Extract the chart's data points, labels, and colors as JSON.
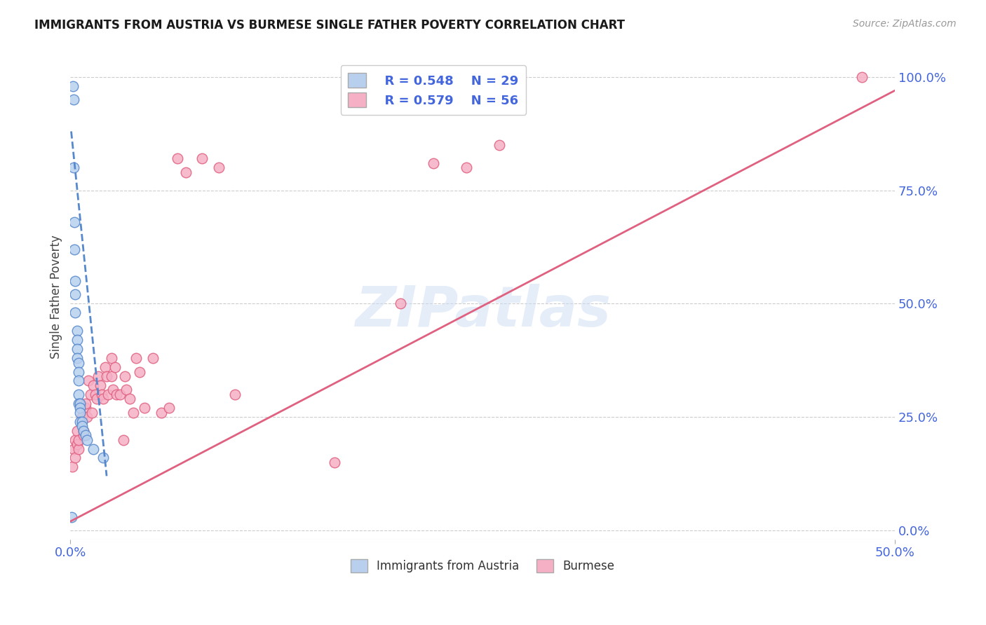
{
  "title": "IMMIGRANTS FROM AUSTRIA VS BURMESE SINGLE FATHER POVERTY CORRELATION CHART",
  "source": "Source: ZipAtlas.com",
  "ylabel": "Single Father Poverty",
  "xlim": [
    0.0,
    0.5
  ],
  "ylim": [
    -0.02,
    1.05
  ],
  "xtick_vals": [
    0.0,
    0.5
  ],
  "xtick_labels": [
    "0.0%",
    "50.0%"
  ],
  "ytick_vals_right": [
    0.0,
    0.25,
    0.5,
    0.75,
    1.0
  ],
  "ytick_labels_right": [
    "0.0%",
    "25.0%",
    "50.0%",
    "75.0%",
    "100.0%"
  ],
  "legend_r1": "R = 0.548",
  "legend_n1": "N = 29",
  "legend_r2": "R = 0.579",
  "legend_n2": "N = 56",
  "color_austria": "#b8d0ee",
  "color_burmese": "#f5b0c5",
  "color_trendline_austria": "#5588cc",
  "color_trendline_burmese": "#e06080",
  "color_text_blue": "#4466dd",
  "watermark": "ZIPatlas",
  "austria_x": [
    0.0008,
    0.0015,
    0.0018,
    0.002,
    0.0022,
    0.0024,
    0.003,
    0.003,
    0.003,
    0.004,
    0.004,
    0.004,
    0.004,
    0.005,
    0.005,
    0.005,
    0.005,
    0.005,
    0.006,
    0.006,
    0.006,
    0.006,
    0.007,
    0.007,
    0.008,
    0.009,
    0.01,
    0.014,
    0.02
  ],
  "austria_y": [
    0.03,
    0.98,
    0.95,
    0.8,
    0.68,
    0.62,
    0.55,
    0.52,
    0.48,
    0.44,
    0.42,
    0.4,
    0.38,
    0.37,
    0.35,
    0.33,
    0.3,
    0.28,
    0.28,
    0.27,
    0.26,
    0.24,
    0.24,
    0.23,
    0.22,
    0.21,
    0.2,
    0.18,
    0.16
  ],
  "burmese_x": [
    0.001,
    0.002,
    0.003,
    0.003,
    0.004,
    0.004,
    0.005,
    0.005,
    0.006,
    0.007,
    0.008,
    0.008,
    0.009,
    0.009,
    0.01,
    0.011,
    0.012,
    0.013,
    0.014,
    0.015,
    0.016,
    0.017,
    0.018,
    0.019,
    0.02,
    0.021,
    0.022,
    0.023,
    0.025,
    0.025,
    0.026,
    0.027,
    0.028,
    0.03,
    0.032,
    0.033,
    0.034,
    0.036,
    0.038,
    0.04,
    0.042,
    0.045,
    0.05,
    0.055,
    0.06,
    0.065,
    0.07,
    0.08,
    0.09,
    0.1,
    0.16,
    0.2,
    0.22,
    0.24,
    0.26,
    0.48
  ],
  "burmese_y": [
    0.14,
    0.18,
    0.16,
    0.2,
    0.22,
    0.19,
    0.18,
    0.2,
    0.28,
    0.25,
    0.22,
    0.21,
    0.27,
    0.28,
    0.25,
    0.33,
    0.3,
    0.26,
    0.32,
    0.3,
    0.29,
    0.34,
    0.32,
    0.3,
    0.29,
    0.36,
    0.34,
    0.3,
    0.38,
    0.34,
    0.31,
    0.36,
    0.3,
    0.3,
    0.2,
    0.34,
    0.31,
    0.29,
    0.26,
    0.38,
    0.35,
    0.27,
    0.38,
    0.26,
    0.27,
    0.82,
    0.79,
    0.82,
    0.8,
    0.3,
    0.15,
    0.5,
    0.81,
    0.8,
    0.85,
    1.0
  ],
  "background_color": "#ffffff",
  "grid_color": "#cccccc",
  "austria_trendline_x": [
    0.0005,
    0.022
  ],
  "austria_trendline_y": [
    0.88,
    0.12
  ],
  "burmese_trendline_x": [
    0.0,
    0.5
  ],
  "burmese_trendline_y": [
    0.02,
    0.97
  ]
}
